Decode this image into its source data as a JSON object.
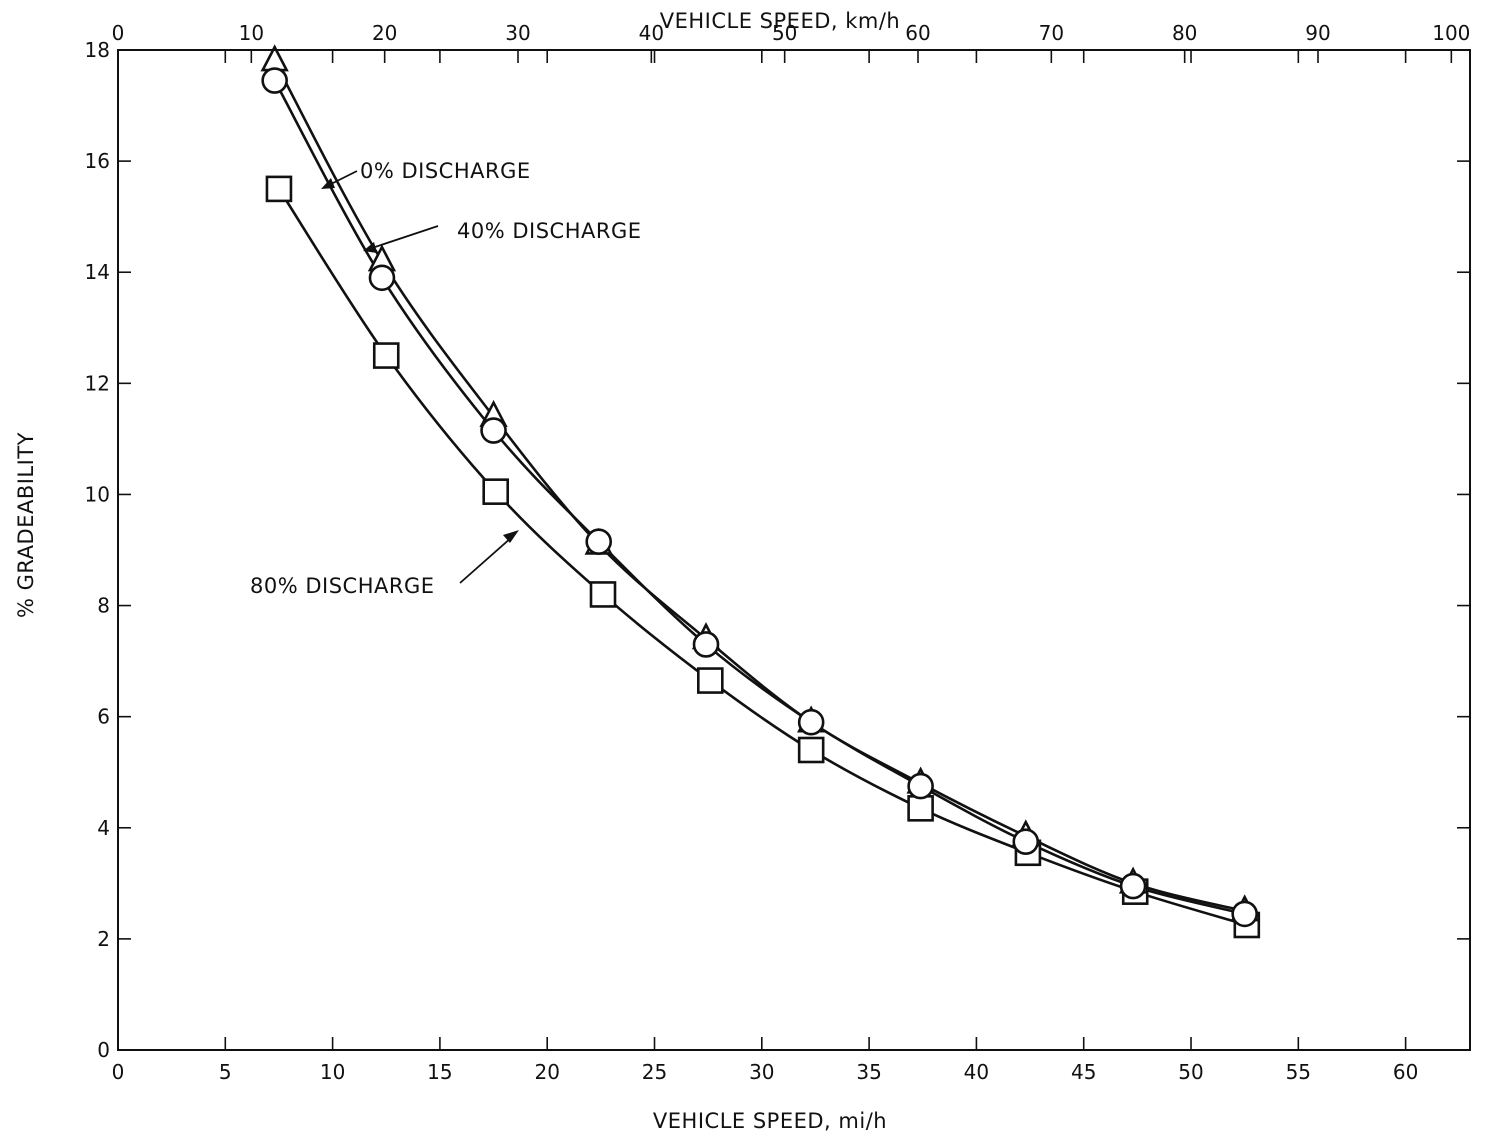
{
  "chart_data": {
    "type": "line",
    "xlabel": "VEHICLE SPEED, mi/h",
    "x2label": "VEHICLE SPEED, km/h",
    "ylabel": "% GRADEABILITY",
    "xlim": [
      0,
      63
    ],
    "x2lim": [
      0,
      101.4
    ],
    "ylim": [
      0,
      18
    ],
    "x_ticks": [
      0,
      5,
      10,
      15,
      20,
      25,
      30,
      35,
      40,
      45,
      50,
      55,
      60
    ],
    "x2_ticks": [
      0,
      10,
      20,
      30,
      40,
      50,
      60,
      70,
      80,
      90,
      100
    ],
    "y_ticks": [
      0,
      2,
      4,
      6,
      8,
      10,
      12,
      14,
      16,
      18
    ],
    "grid": false,
    "series": [
      {
        "name": "0% DISCHARGE",
        "marker": "triangle",
        "x": [
          7.3,
          12.3,
          17.5,
          22.4,
          27.4,
          32.3,
          37.4,
          42.3,
          47.3,
          52.5
        ],
        "y": [
          17.8,
          14.2,
          11.4,
          9.1,
          7.4,
          5.9,
          4.8,
          3.85,
          3.0,
          2.5
        ]
      },
      {
        "name": "40% DISCHARGE",
        "marker": "circle",
        "x": [
          7.3,
          12.3,
          17.5,
          22.4,
          27.4,
          32.3,
          37.4,
          42.3,
          47.3,
          52.5
        ],
        "y": [
          17.45,
          13.9,
          11.15,
          9.15,
          7.3,
          5.9,
          4.75,
          3.75,
          2.95,
          2.45
        ]
      },
      {
        "name": "80% DISCHARGE",
        "marker": "square",
        "x": [
          7.5,
          12.5,
          17.6,
          22.6,
          27.6,
          32.3,
          37.4,
          42.4,
          47.4,
          52.6
        ],
        "y": [
          15.5,
          12.5,
          10.05,
          8.2,
          6.65,
          5.4,
          4.35,
          3.55,
          2.85,
          2.25
        ]
      }
    ],
    "annotations": [
      {
        "text": "0% DISCHARGE",
        "points_to": "0% DISCHARGE"
      },
      {
        "text": "40% DISCHARGE",
        "points_to": "40% DISCHARGE"
      },
      {
        "text": "80% DISCHARGE",
        "points_to": "80% DISCHARGE"
      }
    ]
  }
}
